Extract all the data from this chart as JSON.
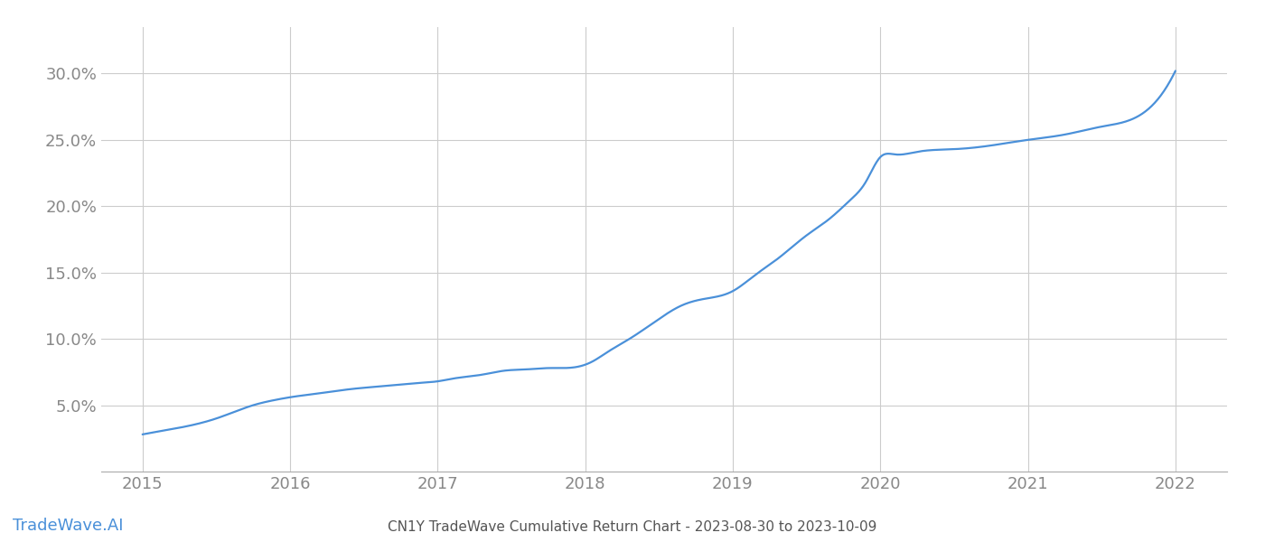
{
  "title": "CN1Y TradeWave Cumulative Return Chart - 2023-08-30 to 2023-10-09",
  "watermark": "TradeWave.AI",
  "line_color": "#4a90d9",
  "background_color": "#ffffff",
  "grid_color": "#cccccc",
  "x_years": [
    2015,
    2016,
    2017,
    2018,
    2019,
    2020,
    2021,
    2022
  ],
  "curve_x": [
    2015.0,
    2015.2,
    2015.5,
    2015.75,
    2015.9,
    2016.0,
    2016.2,
    2016.4,
    2016.7,
    2016.9,
    2017.0,
    2017.1,
    2017.3,
    2017.45,
    2017.6,
    2017.75,
    2017.85,
    2017.95,
    2018.05,
    2018.15,
    2018.3,
    2018.5,
    2018.65,
    2018.8,
    2019.0,
    2019.15,
    2019.3,
    2019.5,
    2019.65,
    2019.8,
    2019.9,
    2020.0,
    2020.1,
    2020.25,
    2020.5,
    2020.7,
    2021.0,
    2021.25,
    2021.5,
    2021.75,
    2022.0
  ],
  "curve_y": [
    0.028,
    0.032,
    0.04,
    0.05,
    0.054,
    0.056,
    0.059,
    0.062,
    0.065,
    0.067,
    0.068,
    0.07,
    0.073,
    0.076,
    0.077,
    0.078,
    0.078,
    0.079,
    0.083,
    0.09,
    0.1,
    0.115,
    0.125,
    0.13,
    0.136,
    0.148,
    0.16,
    0.178,
    0.19,
    0.205,
    0.218,
    0.237,
    0.239,
    0.241,
    0.243,
    0.245,
    0.25,
    0.254,
    0.26,
    0.268,
    0.302
  ],
  "ylim": [
    0.0,
    0.335
  ],
  "yticks": [
    0.05,
    0.1,
    0.15,
    0.2,
    0.25,
    0.3
  ],
  "xlim": [
    2014.72,
    2022.35
  ],
  "title_fontsize": 11,
  "tick_fontsize": 13,
  "watermark_fontsize": 13
}
